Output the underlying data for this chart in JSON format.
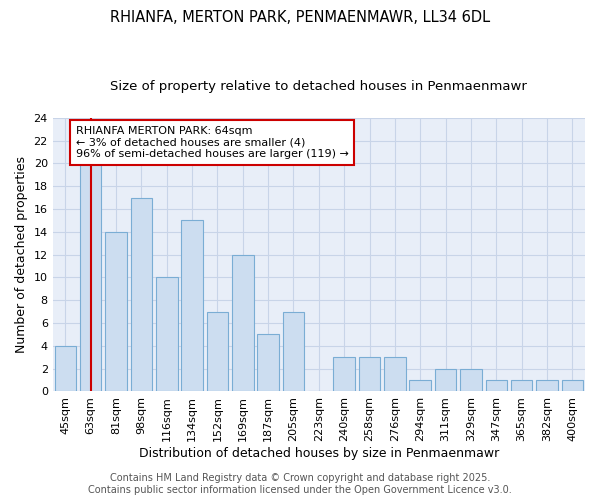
{
  "title_line1": "RHIANFA, MERTON PARK, PENMAENMAWR, LL34 6DL",
  "title_line2": "Size of property relative to detached houses in Penmaenmawr",
  "xlabel": "Distribution of detached houses by size in Penmaenmawr",
  "ylabel": "Number of detached properties",
  "categories": [
    "45sqm",
    "63sqm",
    "81sqm",
    "98sqm",
    "116sqm",
    "134sqm",
    "152sqm",
    "169sqm",
    "187sqm",
    "205sqm",
    "223sqm",
    "240sqm",
    "258sqm",
    "276sqm",
    "294sqm",
    "311sqm",
    "329sqm",
    "347sqm",
    "365sqm",
    "382sqm",
    "400sqm"
  ],
  "values": [
    4,
    20,
    14,
    17,
    10,
    15,
    7,
    12,
    5,
    7,
    0,
    3,
    3,
    3,
    1,
    2,
    2,
    1,
    1,
    1,
    1
  ],
  "bar_color": "#ccddf0",
  "bar_edge_color": "#7aadd4",
  "vline_x": 1,
  "vline_color": "#cc0000",
  "annotation_text": "RHIANFA MERTON PARK: 64sqm\n← 3% of detached houses are smaller (4)\n96% of semi-detached houses are larger (119) →",
  "annotation_box_color": "#ffffff",
  "annotation_box_edge": "#cc0000",
  "ylim": [
    0,
    24
  ],
  "yticks": [
    0,
    2,
    4,
    6,
    8,
    10,
    12,
    14,
    16,
    18,
    20,
    22,
    24
  ],
  "grid_color": "#c8d4e8",
  "background_color": "#e8eef8",
  "footer_text": "Contains HM Land Registry data © Crown copyright and database right 2025.\nContains public sector information licensed under the Open Government Licence v3.0.",
  "title_fontsize": 10.5,
  "subtitle_fontsize": 9.5,
  "axis_label_fontsize": 9,
  "tick_fontsize": 8,
  "annotation_fontsize": 8,
  "footer_fontsize": 7
}
